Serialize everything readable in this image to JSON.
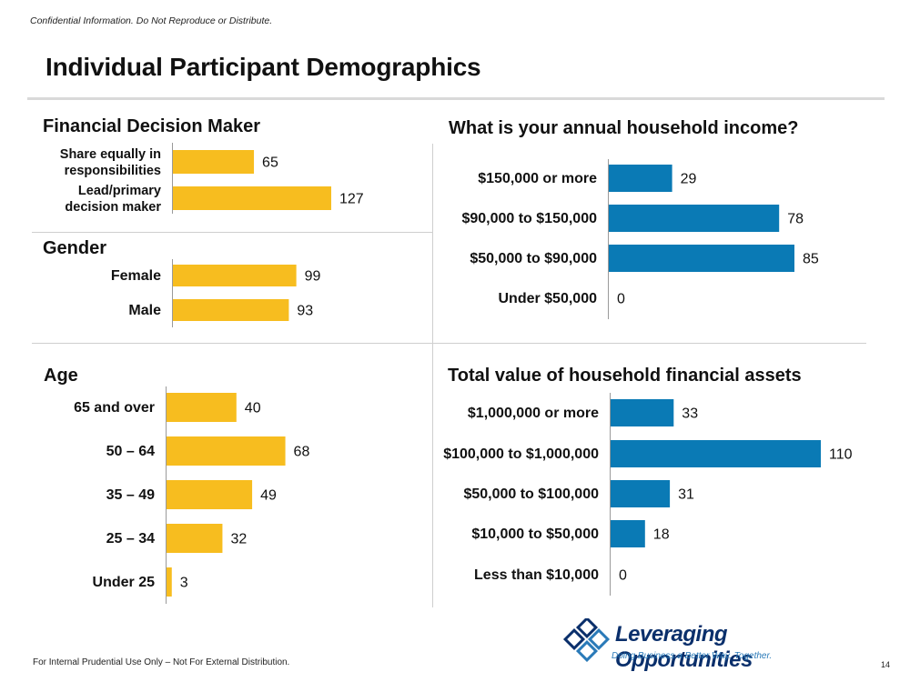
{
  "header": {
    "confidential": "Confidential Information. Do Not Reproduce or Distribute.",
    "title": "Individual Participant Demographics"
  },
  "footer": {
    "note": "For Internal Prudential Use Only – Not For External Distribution.",
    "page": "14"
  },
  "logo": {
    "name": "Leveraging Opportunities",
    "tagline": "Doing Business a Better Way. Together."
  },
  "colors": {
    "gold": "#f7bd1f",
    "blue": "#0a7ab5",
    "rule": "#d9d9d9"
  },
  "chart_data": [
    {
      "type": "bar",
      "orientation": "horizontal",
      "title": "Financial Decision Maker",
      "categories": [
        [
          "Share equally in",
          "responsibilities"
        ],
        [
          "Lead/primary",
          "decision maker"
        ]
      ],
      "values": [
        65,
        127
      ],
      "color": "#f7bd1f"
    },
    {
      "type": "bar",
      "orientation": "horizontal",
      "title": "Gender",
      "categories": [
        [
          "Female"
        ],
        [
          "Male"
        ]
      ],
      "values": [
        99,
        93
      ],
      "color": "#f7bd1f"
    },
    {
      "type": "bar",
      "orientation": "horizontal",
      "title": "Age",
      "categories": [
        [
          "65 and over"
        ],
        [
          "50 – 64"
        ],
        [
          "35 – 49"
        ],
        [
          "25 – 34"
        ],
        [
          "Under 25"
        ]
      ],
      "values": [
        40,
        68,
        49,
        32,
        3
      ],
      "color": "#f7bd1f"
    },
    {
      "type": "bar",
      "orientation": "horizontal",
      "title": "What is your annual household income?",
      "categories": [
        [
          "$150,000 or more"
        ],
        [
          "$90,000 to $150,000"
        ],
        [
          "$50,000 to $90,000"
        ],
        [
          "Under $50,000"
        ]
      ],
      "values": [
        29,
        78,
        85,
        0
      ],
      "color": "#0a7ab5"
    },
    {
      "type": "bar",
      "orientation": "horizontal",
      "title": "Total value of household financial assets",
      "categories": [
        [
          "$1,000,000 or more"
        ],
        [
          "$100,000 to $1,000,000"
        ],
        [
          "$50,000 to $100,000"
        ],
        [
          "$10,000 to $50,000"
        ],
        [
          "Less than $10,000"
        ]
      ],
      "values": [
        33,
        110,
        31,
        18,
        0
      ],
      "color": "#0a7ab5"
    }
  ]
}
